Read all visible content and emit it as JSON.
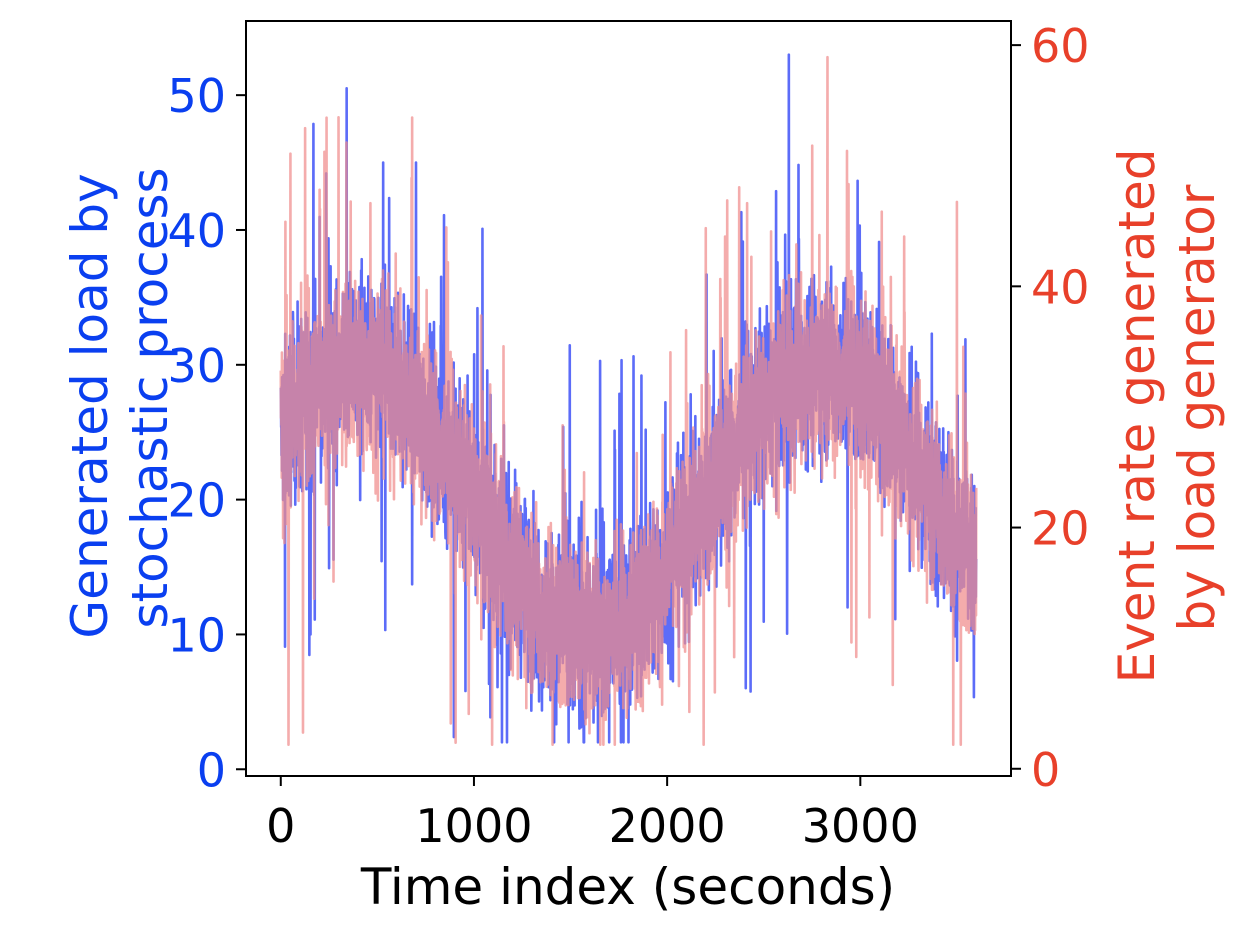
{
  "chart_data": {
    "type": "line",
    "title": "",
    "xlabel": "Time index (seconds)",
    "ylabel_left_lines": [
      "Generated load by",
      "stochastic process"
    ],
    "ylabel_right_lines": [
      "Event rate generated",
      "by load generator"
    ],
    "xlim": [
      -180,
      3780
    ],
    "ylim_left": [
      -0.5,
      55.5
    ],
    "ylim_right": [
      -0.6,
      62
    ],
    "x_ticks": [
      0,
      1000,
      2000,
      3000
    ],
    "x_tick_labels": [
      "0",
      "1000",
      "2000",
      "3000"
    ],
    "y_left_ticks": [
      0,
      10,
      20,
      30,
      40,
      50
    ],
    "y_left_tick_labels": [
      "0",
      "10",
      "20",
      "30",
      "40",
      "50"
    ],
    "y_right_ticks": [
      0,
      20,
      40,
      60
    ],
    "y_right_tick_labels": [
      "0",
      "20",
      "40",
      "60"
    ],
    "grid": false,
    "legend": "none",
    "colors": {
      "left_axis": "#0a3ff0",
      "right_axis": "#e8402a",
      "series_load": "#5c6cf8",
      "series_rate": "#f08c8c"
    },
    "series": [
      {
        "axis": "left",
        "duration_s": 3600,
        "pattern": "sinusoidal, period 2400 s, noisy",
        "mean": 20,
        "amplitude": 10,
        "min": 2,
        "max": 53,
        "peaks": [
          {
            "x": 2630,
            "y": 53
          },
          {
            "x": 530,
            "y": 45
          },
          {
            "x": 700,
            "y": 45
          }
        ],
        "troughs": [
          {
            "x": 1490,
            "y": 2
          },
          {
            "x": 1570,
            "y": 2
          }
        ]
      },
      {
        "axis": "right",
        "duration_s": 3600,
        "pattern": "sinusoidal, period 2400 s, noisy",
        "mean": 22,
        "amplitude": 11,
        "min": 2,
        "max": 59,
        "peaks": [
          {
            "x": 2830,
            "y": 59
          },
          {
            "x": 680,
            "y": 54
          },
          {
            "x": 50,
            "y": 51
          },
          {
            "x": 3500,
            "y": 47
          }
        ],
        "troughs": [
          {
            "x": 40,
            "y": 2
          },
          {
            "x": 1670,
            "y": 2
          },
          {
            "x": 3520,
            "y": 2
          }
        ]
      }
    ]
  }
}
